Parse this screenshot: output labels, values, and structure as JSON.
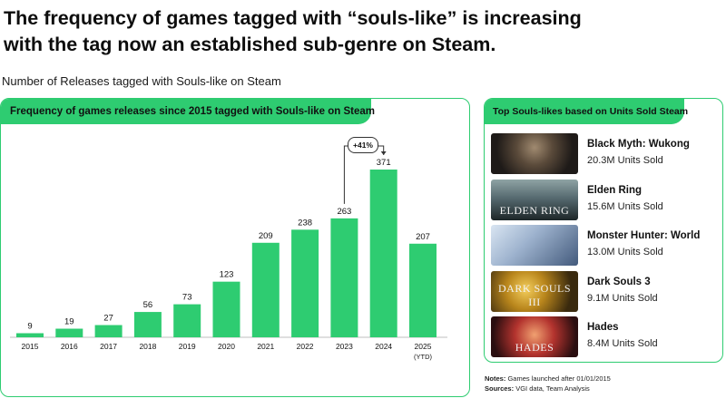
{
  "headline": "The frequency of games tagged with “souls-like” is increasing with the tag now an established sub-genre on Steam.",
  "subheading": "Number of Releases tagged with Souls-like on Steam",
  "chart_panel": {
    "title": "Frequency of games releases since 2015 tagged with Souls-like on Steam",
    "callout": "+41%"
  },
  "chart_data": {
    "type": "bar",
    "title": "Frequency of games releases since 2015 tagged with Souls-like on Steam",
    "xlabel": "",
    "ylabel": "",
    "categories": [
      "2015",
      "2016",
      "2017",
      "2018",
      "2019",
      "2020",
      "2021",
      "2022",
      "2023",
      "2024",
      "2025"
    ],
    "category_sublabels": [
      "",
      "",
      "",
      "",
      "",
      "",
      "",
      "",
      "",
      "",
      "(YTD)"
    ],
    "values": [
      9,
      19,
      27,
      56,
      73,
      123,
      209,
      238,
      263,
      371,
      207
    ],
    "ylim": [
      0,
      371
    ],
    "grid": false,
    "annotation": {
      "from": "2023",
      "to": "2024",
      "text": "+41%"
    },
    "bar_color": "#2ecc71"
  },
  "side_panel": {
    "title": "Top Souls-likes based on Units Sold Steam",
    "games": [
      {
        "name": "Black Myth: Wukong",
        "units": "20.3M Units Sold",
        "thumb_text": ""
      },
      {
        "name": "Elden Ring",
        "units": "15.6M Units Sold",
        "thumb_text": "ELDEN RING"
      },
      {
        "name": "Monster Hunter: World",
        "units": "13.0M Units Sold",
        "thumb_text": ""
      },
      {
        "name": "Dark Souls 3",
        "units": "9.1M Units Sold",
        "thumb_text": "DARK SOULS III"
      },
      {
        "name": "Hades",
        "units": "8.4M Units Sold",
        "thumb_text": "HADES"
      }
    ]
  },
  "notes": {
    "notes_label": "Notes:",
    "notes_text": "Games launched after 01/01/2015",
    "sources_label": "Sources:",
    "sources_text": "VGI data, Team Analysis"
  },
  "colors": {
    "accent": "#2ecc71"
  }
}
